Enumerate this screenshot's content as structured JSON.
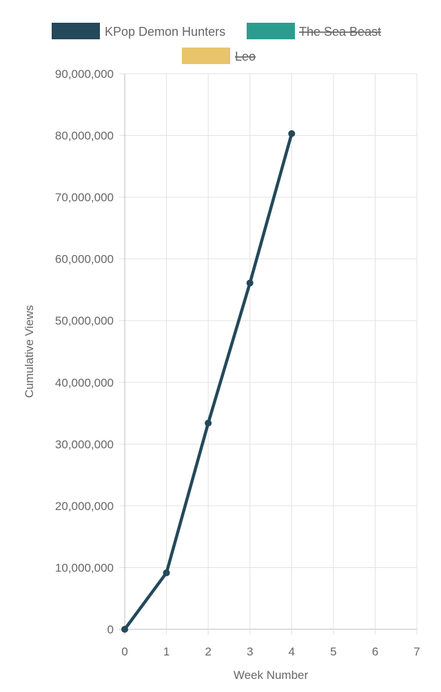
{
  "chart_data": {
    "type": "line",
    "title": "",
    "xlabel": "Week Number",
    "ylabel": "Cumulative Views",
    "xlim": [
      0,
      7
    ],
    "ylim": [
      0,
      90000000
    ],
    "x_ticks": [
      "0",
      "1",
      "2",
      "3",
      "4",
      "5",
      "6",
      "7"
    ],
    "y_ticks": [
      "0",
      "10,000,000",
      "20,000,000",
      "30,000,000",
      "40,000,000",
      "50,000,000",
      "60,000,000",
      "70,000,000",
      "80,000,000",
      "90,000,000"
    ],
    "grid": true,
    "legend_position": "top",
    "series": [
      {
        "name": "KPop Demon Hunters",
        "color": "#23495a",
        "hidden": false,
        "x": [
          0,
          1,
          2,
          3,
          4
        ],
        "values": [
          0,
          9150000,
          33400000,
          56100000,
          80300000
        ]
      },
      {
        "name": "The Sea Beast",
        "color": "#2a9d8f",
        "hidden": true,
        "x": [],
        "values": []
      },
      {
        "name": "Leo",
        "color": "#e9c46a",
        "hidden": true,
        "x": [],
        "values": []
      }
    ]
  }
}
